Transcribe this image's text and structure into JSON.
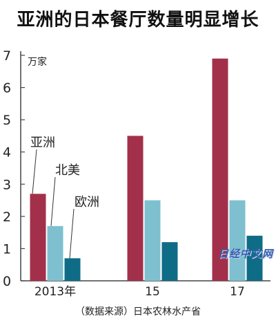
{
  "title": "亚洲的日本餐厅数量明显增长",
  "source_note": "（数据来源）日本农林水产省",
  "watermark": "日经中文网",
  "chart_data": {
    "type": "bar",
    "title": "亚洲的日本餐厅数量明显增长",
    "unit_label": "万家",
    "categories": [
      "2013年",
      "15",
      "17"
    ],
    "series": [
      {
        "name": "亚洲",
        "color": "#a3304a",
        "values": [
          2.7,
          4.5,
          6.9
        ]
      },
      {
        "name": "北美",
        "color": "#7ec0d0",
        "values": [
          1.7,
          2.5,
          2.5
        ]
      },
      {
        "name": "欧洲",
        "color": "#0f6c86",
        "values": [
          0.7,
          1.2,
          1.4
        ]
      }
    ],
    "ylim": [
      0,
      7
    ],
    "yticks": [
      0,
      1,
      2,
      3,
      4,
      5,
      6,
      7
    ],
    "grid": false,
    "legend": "inline labels with leader lines"
  }
}
